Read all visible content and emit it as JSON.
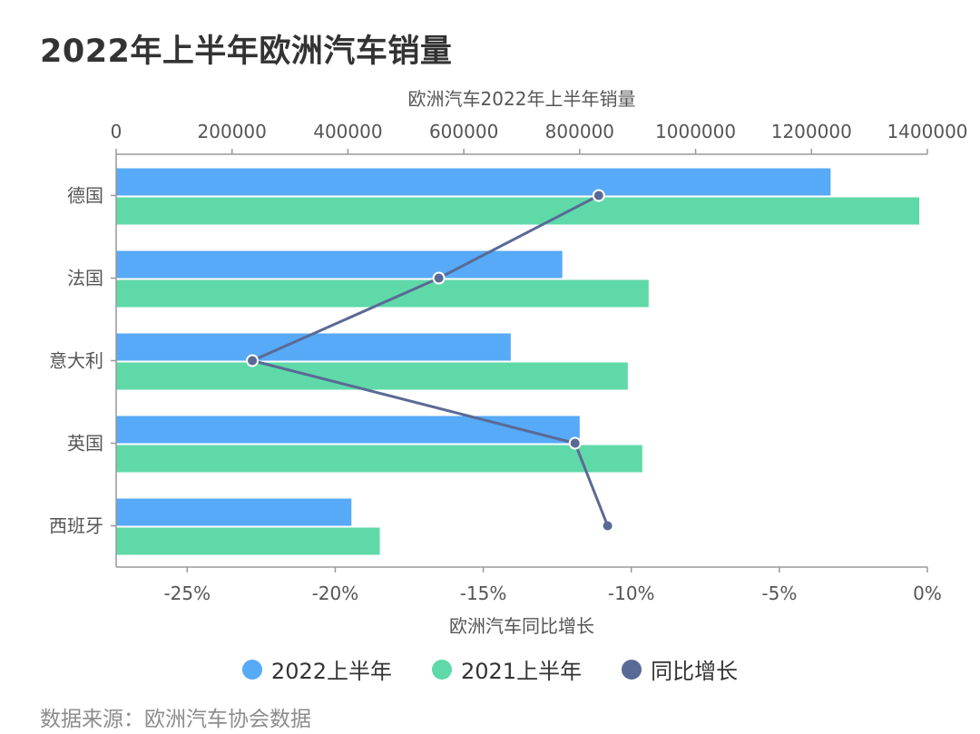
{
  "title": "2022年上半年欧洲汽车销量",
  "source": "数据来源：欧洲汽车协会数据",
  "colors": {
    "s2022": "#57aaf7",
    "s2021": "#5fd9a8",
    "yoy": "#5a6a96"
  },
  "legend": [
    "2022上半年",
    "2021上半年",
    "同比增长"
  ],
  "chart_data": {
    "type": "bar",
    "orientation": "horizontal",
    "categories": [
      "德国",
      "法国",
      "意大利",
      "英国",
      "西班牙"
    ],
    "top_axis": {
      "label": "欧洲汽车2022年上半年销量",
      "min": 0,
      "max": 1400000,
      "ticks": [
        "0",
        "200000",
        "400000",
        "600000",
        "800000",
        "1000000",
        "1200000",
        "1400000"
      ]
    },
    "bottom_axis": {
      "label": "欧洲汽车同比增长",
      "min": -27.4,
      "max": 0,
      "ticks": [
        "-25%",
        "-20%",
        "-15%",
        "-10%",
        "-5%",
        "0%"
      ],
      "tick_values": [
        -25,
        -20,
        -15,
        -10,
        -5,
        0
      ]
    },
    "series": [
      {
        "name": "2022上半年",
        "type": "bar",
        "axis": "top",
        "values": [
          1233000,
          770000,
          681000,
          800000,
          406000
        ]
      },
      {
        "name": "2021上半年",
        "type": "bar",
        "axis": "top",
        "values": [
          1386000,
          919000,
          883000,
          908000,
          455000
        ]
      },
      {
        "name": "同比增长",
        "type": "line",
        "axis": "bottom",
        "values": [
          -11.1,
          -16.5,
          -22.8,
          -11.9,
          -10.8
        ]
      }
    ],
    "legend_position": "bottom"
  }
}
